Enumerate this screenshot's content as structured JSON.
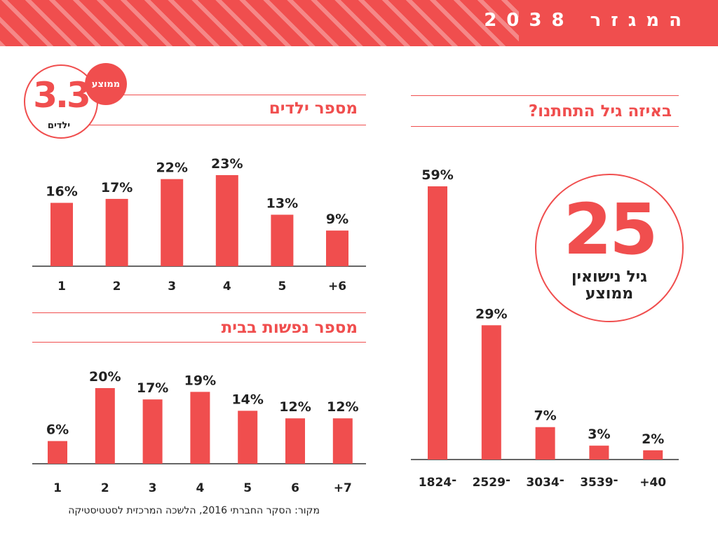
{
  "header": {
    "title": "המגזר 2038"
  },
  "colors": {
    "accent": "#f04e4e",
    "text": "#222222"
  },
  "sections": {
    "children_title": "מספר ילדים",
    "household_title": "מספר נפשות בבית",
    "age_title": "באיזה גיל התחתנו?"
  },
  "badges": {
    "children_avg": {
      "value": "3.3",
      "unit": "ילדים",
      "tag": "ממוצע"
    },
    "marriage_age": {
      "value": "25",
      "line1": "גיל נישואין",
      "line2": "ממוצע"
    }
  },
  "chart_data": [
    {
      "id": "children",
      "type": "bar",
      "title": "מספר ילדים",
      "categories": [
        "1",
        "2",
        "3",
        "4",
        "5",
        "+6"
      ],
      "values": [
        16,
        17,
        22,
        23,
        13,
        9
      ],
      "value_labels": [
        "16%",
        "17%",
        "22%",
        "23%",
        "13%",
        "9%"
      ],
      "unit": "%",
      "ylim": [
        0,
        23
      ],
      "grid": false
    },
    {
      "id": "household",
      "type": "bar",
      "title": "מספר נפשות בבית",
      "categories": [
        "1",
        "2",
        "3",
        "4",
        "5",
        "6",
        "+7"
      ],
      "values": [
        6,
        20,
        17,
        19,
        14,
        12,
        12
      ],
      "value_labels": [
        "6%",
        "20%",
        "17%",
        "19%",
        "14%",
        "12%",
        "12%"
      ],
      "unit": "%",
      "ylim": [
        0,
        20
      ],
      "grid": false
    },
    {
      "id": "marriage_age",
      "type": "bar",
      "title": "באיזה גיל התחתנו?",
      "categories": [
        "18־24",
        "25־29",
        "30־34",
        "35־39",
        "+40"
      ],
      "values": [
        59,
        29,
        7,
        3,
        2
      ],
      "value_labels": [
        "59%",
        "29%",
        "7%",
        "3%",
        "2%"
      ],
      "unit": "%",
      "ylim": [
        0,
        59
      ],
      "grid": false
    }
  ],
  "source": "מקור: הסקר החברתי 2016, הלשכה המרכזית לסטטיסטיקה"
}
